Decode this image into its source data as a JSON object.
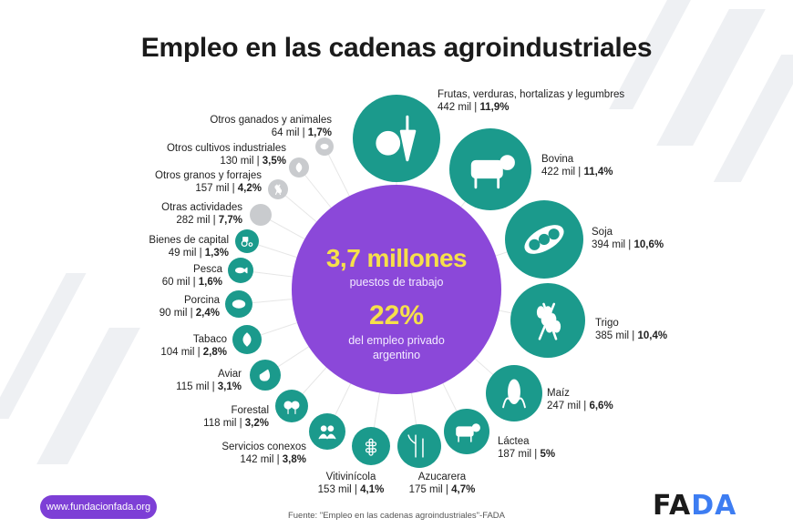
{
  "title": "Empleo en las cadenas agroindustriales",
  "center": {
    "total": "3,7 millones",
    "total_desc": "puestos de trabajo",
    "share": "22%",
    "share_desc_line1": "del empleo privado",
    "share_desc_line2": "argentino"
  },
  "footer": {
    "url": "www.fundacionfada.org",
    "source": "Fuente: \"Empleo en las cadenas agroindustriales\"-FADA",
    "logo_main": "FA",
    "logo_accent": "DA"
  },
  "colors": {
    "teal": "#1b9a8c",
    "purple": "#8b48d9",
    "grey": "#c9cbce",
    "accent_yellow": "#f6e04a",
    "logo_blue": "#3d7df2"
  },
  "chart_data": {
    "type": "bubble",
    "title": "Empleo en las cadenas agroindustriales",
    "unit": "mil puestos de trabajo",
    "total_label": "3,7 millones",
    "share_private_employment": 22,
    "items": [
      {
        "name": "Frutas, verduras, hortalizas y legumbres",
        "value": 442,
        "value_label": "442 mil",
        "pct": 11.9,
        "pct_label": "11,9%",
        "icon": "fruit-vegetables-icon",
        "group": "main"
      },
      {
        "name": "Bovina",
        "value": 422,
        "value_label": "422 mil",
        "pct": 11.4,
        "pct_label": "11,4%",
        "icon": "cow-icon",
        "group": "main"
      },
      {
        "name": "Soja",
        "value": 394,
        "value_label": "394 mil",
        "pct": 10.6,
        "pct_label": "10,6%",
        "icon": "soybean-icon",
        "group": "main"
      },
      {
        "name": "Trigo",
        "value": 385,
        "value_label": "385 mil",
        "pct": 10.4,
        "pct_label": "10,4%",
        "icon": "wheat-icon",
        "group": "main"
      },
      {
        "name": "Maíz",
        "value": 247,
        "value_label": "247 mil",
        "pct": 6.6,
        "pct_label": "6,6%",
        "icon": "corn-icon",
        "group": "main"
      },
      {
        "name": "Láctea",
        "value": 187,
        "value_label": "187 mil",
        "pct": 5,
        "pct_label": "5%",
        "icon": "dairy-cow-icon",
        "group": "main"
      },
      {
        "name": "Azucarera",
        "value": 175,
        "value_label": "175 mil",
        "pct": 4.7,
        "pct_label": "4,7%",
        "icon": "sugarcane-icon",
        "group": "main"
      },
      {
        "name": "Vitivinícola",
        "value": 153,
        "value_label": "153 mil",
        "pct": 4.1,
        "pct_label": "4,1%",
        "icon": "grapes-icon",
        "group": "main"
      },
      {
        "name": "Servicios conexos",
        "value": 142,
        "value_label": "142 mil",
        "pct": 3.8,
        "pct_label": "3,8%",
        "icon": "people-icon",
        "group": "main"
      },
      {
        "name": "Forestal",
        "value": 118,
        "value_label": "118 mil",
        "pct": 3.2,
        "pct_label": "3,2%",
        "icon": "trees-icon",
        "group": "main"
      },
      {
        "name": "Aviar",
        "value": 115,
        "value_label": "115 mil",
        "pct": 3.1,
        "pct_label": "3,1%",
        "icon": "chicken-icon",
        "group": "main"
      },
      {
        "name": "Tabaco",
        "value": 104,
        "value_label": "104 mil",
        "pct": 2.8,
        "pct_label": "2,8%",
        "icon": "tobacco-leaf-icon",
        "group": "main"
      },
      {
        "name": "Porcina",
        "value": 90,
        "value_label": "90 mil",
        "pct": 2.4,
        "pct_label": "2,4%",
        "icon": "pig-icon",
        "group": "main"
      },
      {
        "name": "Pesca",
        "value": 60,
        "value_label": "60 mil",
        "pct": 1.6,
        "pct_label": "1,6%",
        "icon": "fish-icon",
        "group": "main"
      },
      {
        "name": "Bienes de capital",
        "value": 49,
        "value_label": "49 mil",
        "pct": 1.3,
        "pct_label": "1,3%",
        "icon": "tractor-icon",
        "group": "main"
      },
      {
        "name": "Otras actividades",
        "value": 282,
        "value_label": "282 mil",
        "pct": 7.7,
        "pct_label": "7,7%",
        "icon": "",
        "group": "other"
      },
      {
        "name": "Otros granos y forrajes",
        "value": 157,
        "value_label": "157 mil",
        "pct": 4.2,
        "pct_label": "4,2%",
        "icon": "grain-icon",
        "group": "other"
      },
      {
        "name": "Otros cultivos industriales",
        "value": 130,
        "value_label": "130 mil",
        "pct": 3.5,
        "pct_label": "3,5%",
        "icon": "crop-icon",
        "group": "other"
      },
      {
        "name": "Otros ganados y animales",
        "value": 64,
        "value_label": "64 mil",
        "pct": 1.7,
        "pct_label": "1,7%",
        "icon": "sheep-icon",
        "group": "other"
      }
    ]
  }
}
